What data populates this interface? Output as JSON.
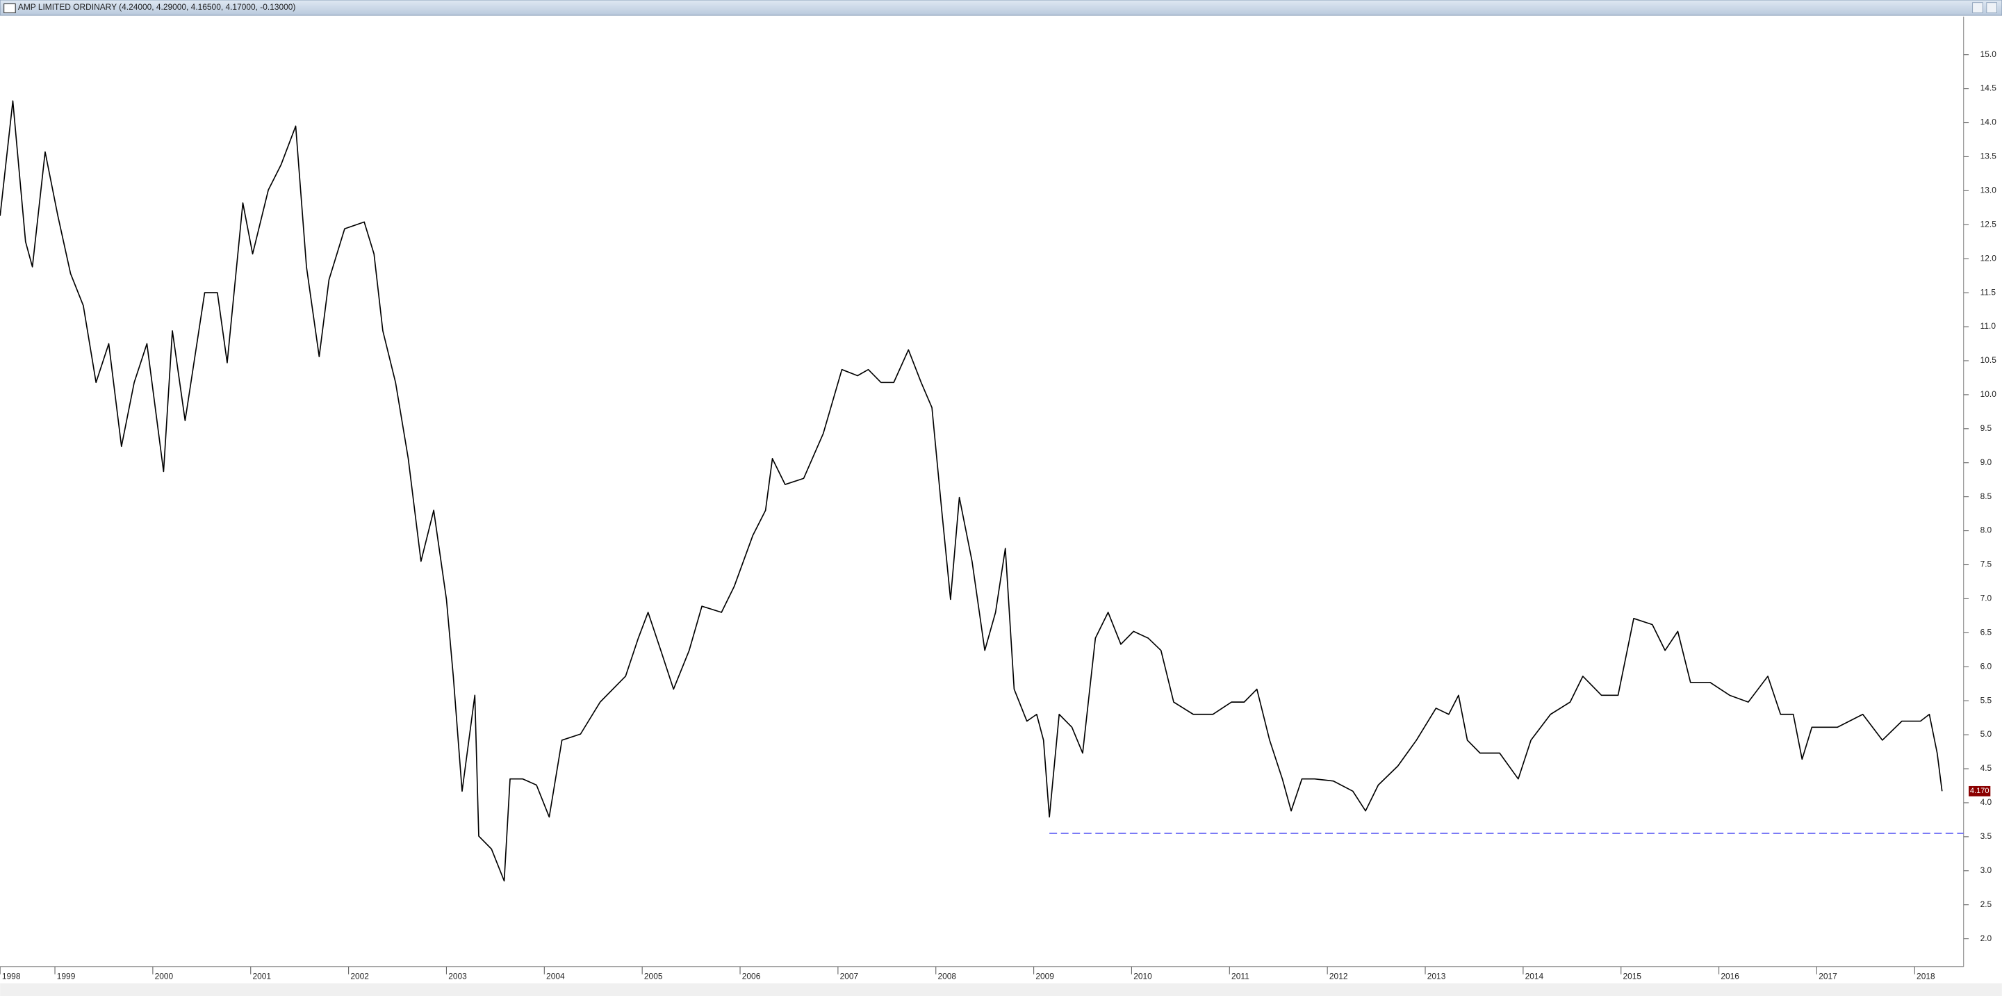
{
  "chart_data": {
    "type": "line",
    "title": "AMP LIMITED  ORDINARY (4.24000, 4.29000, 4.16500, 4.17000, -0.13000)",
    "xlim": [
      1998.44,
      2018.5
    ],
    "xticks": [
      1998,
      1999,
      2000,
      2001,
      2002,
      2003,
      2004,
      2005,
      2006,
      2007,
      2008,
      2009,
      2010,
      2011,
      2012,
      2013,
      2014,
      2015,
      2016,
      2017,
      2018
    ],
    "ylim": [
      1.59,
      15.56
    ],
    "yticks": [
      {
        "value": 2,
        "label": "2.0"
      },
      {
        "value": 2.5,
        "label": "2.5"
      },
      {
        "value": 3,
        "label": "3.0"
      },
      {
        "value": 3.5,
        "label": "3.5"
      },
      {
        "value": 4,
        "label": "4.0"
      },
      {
        "value": 4.5,
        "label": "4.5"
      },
      {
        "value": 5,
        "label": "5.0"
      },
      {
        "value": 5.5,
        "label": "5.5"
      },
      {
        "value": 6,
        "label": "6.0"
      },
      {
        "value": 6.5,
        "label": "6.5"
      },
      {
        "value": 7,
        "label": "7.0"
      },
      {
        "value": 7.5,
        "label": "7.5"
      },
      {
        "value": 8,
        "label": "8.0"
      },
      {
        "value": 8.5,
        "label": "8.5"
      },
      {
        "value": 9,
        "label": "9.0"
      },
      {
        "value": 9.5,
        "label": "9.5"
      },
      {
        "value": 10,
        "label": "10.0"
      },
      {
        "value": 10.5,
        "label": "10.5"
      },
      {
        "value": 11,
        "label": "11.0"
      },
      {
        "value": 11.5,
        "label": "11.5"
      },
      {
        "value": 12,
        "label": "12.0"
      },
      {
        "value": 12.5,
        "label": "12.5"
      },
      {
        "value": 13,
        "label": "13.0"
      },
      {
        "value": 13.5,
        "label": "13.5"
      },
      {
        "value": 14,
        "label": "14.0"
      },
      {
        "value": 14.5,
        "label": "14.5"
      },
      {
        "value": 15,
        "label": "15.0"
      }
    ],
    "x": [
      1998.44,
      1998.57,
      1998.7,
      1998.77,
      1998.9,
      1999.03,
      1999.16,
      1999.29,
      1999.42,
      1999.55,
      1999.68,
      1999.81,
      1999.94,
      2000.11,
      2000.2,
      2000.33,
      2000.53,
      2000.66,
      2000.76,
      2000.92,
      2001.02,
      2001.18,
      2001.31,
      2001.46,
      2001.57,
      2001.7,
      2001.8,
      2001.96,
      2002.16,
      2002.26,
      2002.35,
      2002.48,
      2002.61,
      2002.74,
      2002.87,
      2003.0,
      2003.07,
      2003.16,
      2003.29,
      2003.33,
      2003.46,
      2003.59,
      2003.65,
      2003.78,
      2003.92,
      2004.05,
      2004.18,
      2004.37,
      2004.57,
      2004.83,
      2004.96,
      2005.06,
      2005.19,
      2005.32,
      2005.48,
      2005.61,
      2005.81,
      2005.94,
      2006.13,
      2006.26,
      2006.33,
      2006.46,
      2006.65,
      2006.85,
      2007.04,
      2007.2,
      2007.31,
      2007.44,
      2007.57,
      2007.72,
      2007.85,
      2007.96,
      2008.06,
      2008.15,
      2008.24,
      2008.37,
      2008.5,
      2008.61,
      2008.71,
      2008.8,
      2008.93,
      2009.03,
      2009.1,
      2009.16,
      2009.26,
      2009.39,
      2009.5,
      2009.63,
      2009.76,
      2009.89,
      2010.02,
      2010.17,
      2010.3,
      2010.43,
      2010.63,
      2010.83,
      2011.02,
      2011.15,
      2011.28,
      2011.41,
      2011.54,
      2011.63,
      2011.74,
      2011.87,
      2012.06,
      2012.26,
      2012.39,
      2012.52,
      2012.72,
      2012.91,
      2013.11,
      2013.24,
      2013.34,
      2013.43,
      2013.56,
      2013.76,
      2013.95,
      2014.08,
      2014.28,
      2014.48,
      2014.61,
      2014.8,
      2014.97,
      2015.13,
      2015.32,
      2015.45,
      2015.58,
      2015.71,
      2015.91,
      2016.11,
      2016.3,
      2016.5,
      2016.63,
      2016.76,
      2016.85,
      2016.95,
      2017.21,
      2017.47,
      2017.67,
      2017.87,
      2018.06,
      2018.15,
      2018.23,
      2018.28
    ],
    "series": [
      {
        "color": "#000000",
        "values": [
          12.63,
          14.32,
          12.25,
          11.88,
          13.57,
          12.63,
          11.78,
          11.31,
          10.18,
          10.75,
          9.24,
          10.18,
          10.75,
          8.87,
          10.94,
          9.62,
          11.5,
          11.5,
          10.47,
          12.82,
          12.07,
          13.01,
          13.38,
          13.95,
          11.88,
          10.56,
          11.69,
          12.44,
          12.54,
          12.07,
          10.94,
          10.18,
          9.06,
          7.55,
          8.3,
          6.99,
          5.86,
          4.17,
          5.58,
          3.51,
          3.32,
          2.85,
          4.35,
          4.35,
          4.26,
          3.79,
          4.92,
          5.01,
          5.48,
          5.86,
          6.42,
          6.8,
          6.24,
          5.67,
          6.24,
          6.89,
          6.8,
          7.18,
          7.93,
          8.3,
          9.06,
          8.68,
          8.77,
          9.43,
          10.37,
          10.28,
          10.37,
          10.18,
          10.18,
          10.66,
          10.18,
          9.81,
          8.3,
          6.99,
          8.49,
          7.55,
          6.24,
          6.8,
          7.74,
          5.67,
          5.2,
          5.3,
          4.92,
          3.79,
          5.3,
          5.11,
          4.73,
          6.42,
          6.8,
          6.33,
          6.52,
          6.42,
          6.24,
          5.48,
          5.3,
          5.3,
          5.48,
          5.48,
          5.67,
          4.92,
          4.35,
          3.88,
          4.35,
          4.35,
          4.32,
          4.17,
          3.88,
          4.26,
          4.54,
          4.92,
          5.39,
          5.3,
          5.58,
          4.92,
          4.73,
          4.73,
          4.35,
          4.92,
          5.3,
          5.48,
          5.86,
          5.58,
          5.58,
          6.71,
          6.62,
          6.24,
          6.52,
          5.77,
          5.77,
          5.58,
          5.48,
          5.86,
          5.3,
          5.3,
          4.64,
          5.11,
          5.11,
          5.3,
          4.92,
          5.2,
          5.2,
          5.3,
          4.73,
          4.17
        ]
      }
    ],
    "support_line": {
      "value": 3.55,
      "x_start": 2009.16,
      "color": "#6f6ff5"
    },
    "last_price": {
      "value": 4.17,
      "label": "4.170",
      "color": "#8b0000"
    }
  }
}
